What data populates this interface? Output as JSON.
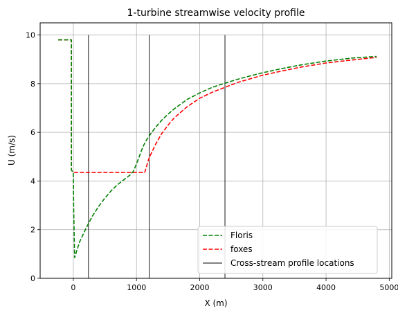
{
  "chart_data": {
    "type": "line",
    "title": "1-turbine streamwise velocity profile",
    "xlabel": "X (m)",
    "ylabel": "U (m/s)",
    "xlim": [
      -525,
      5040
    ],
    "ylim": [
      0,
      10.5
    ],
    "xticks": [
      0,
      1000,
      2000,
      3000,
      4000,
      5000
    ],
    "yticks": [
      0,
      2,
      4,
      6,
      8,
      10
    ],
    "grid": true,
    "legend_position": "lower-right",
    "series": [
      {
        "name": "Floris",
        "color": "#008000",
        "style": "dashed",
        "x": [
          -240,
          -30,
          -30,
          0,
          5,
          20,
          100,
          200,
          300,
          400,
          500,
          600,
          700,
          800,
          900,
          950,
          1000,
          1050,
          1100,
          1150,
          1200,
          1300,
          1400,
          1500,
          1600,
          1800,
          2000,
          2200,
          2400,
          2600,
          2800,
          3000,
          3300,
          3600,
          4000,
          4400,
          4800
        ],
        "y": [
          9.8,
          9.8,
          4.45,
          4.35,
          3.0,
          0.85,
          1.5,
          2.05,
          2.55,
          2.95,
          3.3,
          3.6,
          3.85,
          4.05,
          4.25,
          4.4,
          4.7,
          5.05,
          5.4,
          5.65,
          5.85,
          6.2,
          6.5,
          6.75,
          6.97,
          7.35,
          7.62,
          7.85,
          8.02,
          8.18,
          8.32,
          8.45,
          8.62,
          8.77,
          8.93,
          9.05,
          9.12
        ]
      },
      {
        "name": "foxes",
        "color": "#ff0000",
        "style": "dashed",
        "x": [
          -240,
          -30,
          -30,
          0,
          10,
          100,
          500,
          1000,
          1130,
          1200,
          1300,
          1400,
          1500,
          1600,
          1800,
          2000,
          2200,
          2400,
          2600,
          2800,
          3000,
          3300,
          3600,
          4000,
          4400,
          4800
        ],
        "y": [
          9.8,
          9.8,
          4.45,
          4.35,
          4.35,
          4.35,
          4.35,
          4.35,
          4.35,
          4.95,
          5.5,
          5.95,
          6.3,
          6.6,
          7.05,
          7.4,
          7.65,
          7.85,
          8.05,
          8.2,
          8.35,
          8.52,
          8.68,
          8.85,
          8.97,
          9.08
        ]
      }
    ],
    "vertical_lines": {
      "name": "Cross-stream profile locations",
      "color": "#000000",
      "x": [
        240,
        1200,
        2400
      ],
      "y_range": [
        0,
        10
      ]
    }
  }
}
